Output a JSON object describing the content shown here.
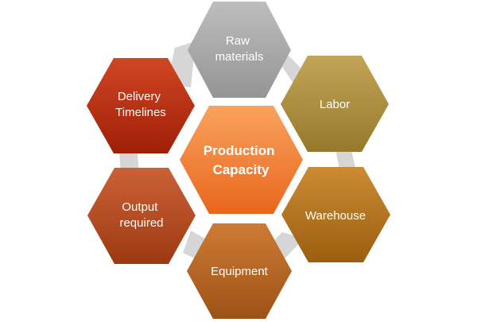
{
  "diagram": {
    "center": {
      "lines": [
        "Production",
        "Capacity"
      ],
      "color": "#F47C2E"
    },
    "nodes": [
      {
        "id": "raw-materials",
        "lines": [
          "Raw",
          "materials"
        ],
        "color": "#A6A6A6"
      },
      {
        "id": "labor",
        "lines": [
          "Labor"
        ],
        "color": "#A88A35"
      },
      {
        "id": "warehouse",
        "lines": [
          "Warehouse"
        ],
        "color": "#B07018"
      },
      {
        "id": "equipment",
        "lines": [
          "Equipment"
        ],
        "color": "#B5641F"
      },
      {
        "id": "output-required",
        "lines": [
          "Output",
          "required"
        ],
        "color": "#B3481E"
      },
      {
        "id": "delivery-timelines",
        "lines": [
          "Delivery",
          "Timelines"
        ],
        "color": "#B72A10"
      }
    ]
  }
}
